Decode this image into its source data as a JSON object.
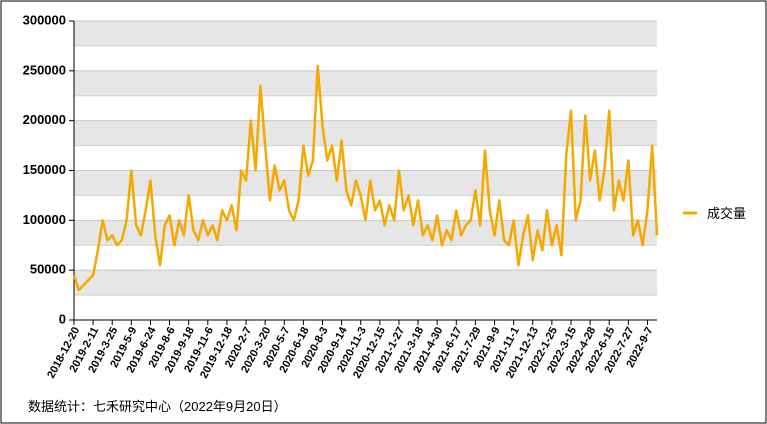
{
  "chart_data": {
    "type": "line",
    "categories": [
      "2018-12-20",
      null,
      null,
      null,
      "2019-2-11",
      null,
      null,
      null,
      "2019-3-25",
      null,
      null,
      null,
      "2019-5-9",
      null,
      null,
      null,
      "2019-6-24",
      null,
      null,
      null,
      "2019-8-6",
      null,
      null,
      null,
      "2019-9-18",
      null,
      null,
      null,
      "2019-11-6",
      null,
      null,
      null,
      "2019-12-18",
      null,
      null,
      null,
      "2020-2-7",
      null,
      null,
      null,
      "2020-3-20",
      null,
      null,
      null,
      "2020-5-7",
      null,
      null,
      null,
      "2020-6-18",
      null,
      null,
      null,
      "2020-8-3",
      null,
      null,
      null,
      "2020-9-14",
      null,
      null,
      null,
      "2020-11-3",
      null,
      null,
      null,
      "2020-12-15",
      null,
      null,
      null,
      "2021-1-27",
      null,
      null,
      null,
      "2021-3-18",
      null,
      null,
      null,
      "2021-4-30",
      null,
      null,
      null,
      "2021-6-17",
      null,
      null,
      null,
      "2021-7-29",
      null,
      null,
      null,
      "2021-9-9",
      null,
      null,
      null,
      "2021-11-1",
      null,
      null,
      null,
      "2021-12-13",
      null,
      null,
      null,
      "2022-1-25",
      null,
      null,
      null,
      "2022-3-15",
      null,
      null,
      null,
      "2022-4-28",
      null,
      null,
      null,
      "2022-6-15",
      null,
      null,
      null,
      "2022-7-27",
      null,
      null,
      null,
      "2022-9-7",
      null,
      null
    ],
    "series": [
      {
        "name": "成交量",
        "color": "#f5a800",
        "values": [
          45000,
          30000,
          35000,
          40000,
          45000,
          70000,
          100000,
          80000,
          85000,
          75000,
          80000,
          100000,
          150000,
          95000,
          85000,
          110000,
          140000,
          85000,
          55000,
          95000,
          105000,
          75000,
          100000,
          85000,
          125000,
          90000,
          80000,
          100000,
          85000,
          95000,
          80000,
          110000,
          100000,
          115000,
          90000,
          150000,
          140000,
          200000,
          150000,
          235000,
          175000,
          120000,
          155000,
          130000,
          140000,
          110000,
          100000,
          120000,
          175000,
          145000,
          160000,
          255000,
          195000,
          160000,
          175000,
          140000,
          180000,
          130000,
          115000,
          140000,
          125000,
          100000,
          140000,
          110000,
          120000,
          95000,
          115000,
          100000,
          150000,
          110000,
          125000,
          95000,
          120000,
          85000,
          95000,
          80000,
          105000,
          75000,
          90000,
          80000,
          110000,
          85000,
          95000,
          100000,
          130000,
          95000,
          170000,
          110000,
          85000,
          120000,
          80000,
          75000,
          100000,
          55000,
          85000,
          105000,
          60000,
          90000,
          70000,
          110000,
          75000,
          95000,
          65000,
          165000,
          210000,
          100000,
          120000,
          205000,
          140000,
          170000,
          120000,
          150000,
          210000,
          110000,
          140000,
          120000,
          160000,
          85000,
          100000,
          75000,
          110000,
          175000,
          85000
        ]
      }
    ],
    "ylim": [
      0,
      300000
    ],
    "yticks": [
      0,
      50000,
      100000,
      150000,
      200000,
      250000,
      300000
    ],
    "legend": "right",
    "footnote": "数据统计：七禾研究中心（2022年9月20日）"
  }
}
